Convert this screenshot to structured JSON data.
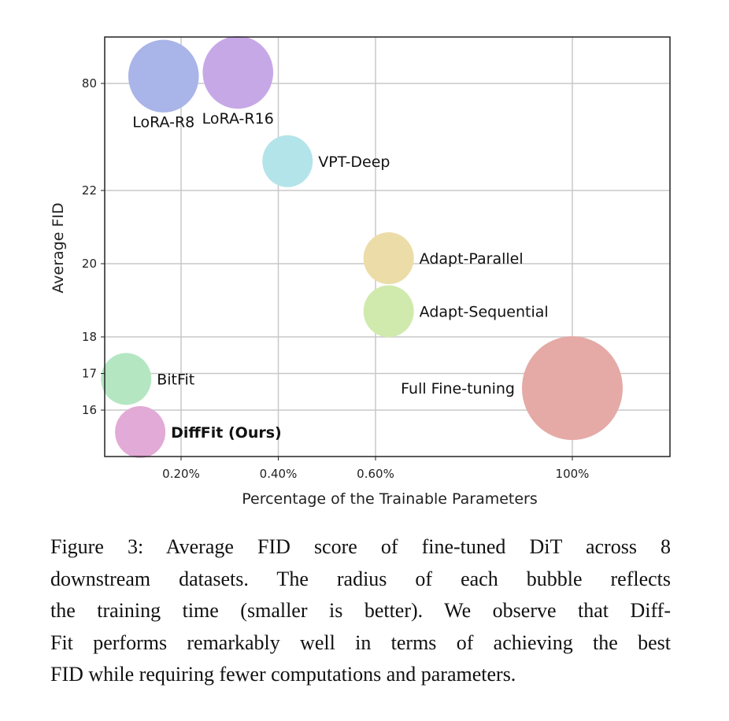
{
  "chart_data": {
    "type": "scatter",
    "subtype": "bubble",
    "xlabel": "Percentage of the Trainable Parameters",
    "ylabel": "Average FID",
    "x_ticks": [
      0.2,
      0.4,
      0.6,
      100
    ],
    "x_tick_labels": [
      "0.20%",
      "0.40%",
      "0.60%",
      "100%"
    ],
    "y_ticks": [
      16,
      17,
      18,
      20,
      22,
      80
    ],
    "y_tick_labels": [
      "16",
      "17",
      "18",
      "20",
      "22",
      "80"
    ],
    "x_axis_break": [
      0.6,
      100
    ],
    "y_axis_break": [
      22,
      80
    ],
    "grid": true,
    "bubble_size_meaning": "relative training time (radius)",
    "points": [
      {
        "name": "LoRA-R8",
        "x": 0.164,
        "y": 80.2,
        "size": 1.4,
        "color": "#a9b5e8",
        "label_pos": "below",
        "bold": false
      },
      {
        "name": "LoRA-R16",
        "x": 0.317,
        "y": 80.3,
        "size": 1.4,
        "color": "#c7a8e6",
        "label_pos": "below",
        "bold": false
      },
      {
        "name": "VPT-Deep",
        "x": 0.419,
        "y": 22.8,
        "size": 1.0,
        "color": "#b3e4ea",
        "label_pos": "right",
        "bold": false
      },
      {
        "name": "Adapt-Parallel",
        "x": 0.627,
        "y": 20.15,
        "size": 1.0,
        "color": "#ecdca8",
        "label_pos": "right",
        "bold": false
      },
      {
        "name": "Adapt-Sequential",
        "x": 0.627,
        "y": 18.7,
        "size": 1.0,
        "color": "#d0eaad",
        "label_pos": "right",
        "bold": false
      },
      {
        "name": "Full Fine-tuning",
        "x": 100,
        "y": 16.6,
        "size": 2.0,
        "color": "#e5aaa6",
        "label_pos": "left",
        "bold": false
      },
      {
        "name": "BitFit",
        "x": 0.087,
        "y": 16.85,
        "size": 1.0,
        "color": "#b4e6c2",
        "label_pos": "right",
        "bold": false
      },
      {
        "name": "DiffFit (Ours)",
        "x": 0.116,
        "y": 15.4,
        "size": 1.0,
        "color": "#e2aad6",
        "label_pos": "right",
        "bold": true
      }
    ]
  },
  "caption": {
    "lines": [
      "Figure 3:  Average FID score of fine-tuned DiT across 8",
      "downstream datasets.  The radius of each bubble reflects",
      "the training time (smaller is better). We observe that Diff-",
      "Fit performs remarkably well in terms of achieving the best",
      "FID while requiring fewer computations and parameters."
    ]
  }
}
